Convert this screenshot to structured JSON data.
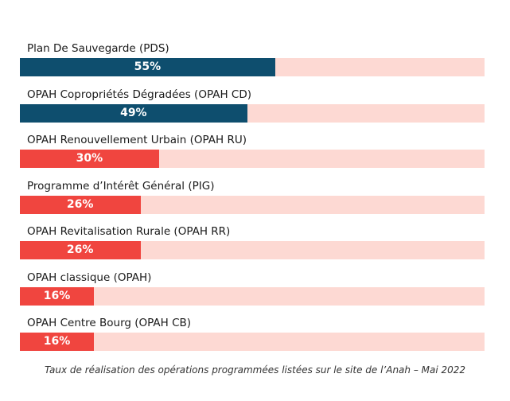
{
  "chart_data": {
    "type": "bar",
    "orientation": "horizontal",
    "categories": [
      "Plan De Sauvegarde (PDS)",
      "OPAH Copropriétés Dégradées (OPAH CD)",
      "OPAH Renouvellement Urbain (OPAH RU)",
      "Programme d’Intérêt Général (PIG)",
      "OPAH Revitalisation Rurale (OPAH RR)",
      "OPAH classique (OPAH)",
      "OPAH Centre Bourg (OPAH CB)"
    ],
    "values": [
      55,
      49,
      30,
      26,
      26,
      16,
      16
    ],
    "value_labels": [
      "55%",
      "49%",
      "30%",
      "26%",
      "26%",
      "16%",
      "16%"
    ],
    "xlim": [
      0,
      100
    ],
    "grid": false,
    "legend": "none",
    "caption": "Taux de réalisation des opérations programmées listées sur le site de l’Anah – Mai 2022",
    "colors": {
      "highlight": "#0e4e6e",
      "default": "#f0453f",
      "track": "#fdd9d3",
      "value_text": "#ffffff"
    },
    "highlighted_indices": [
      0,
      1
    ]
  }
}
